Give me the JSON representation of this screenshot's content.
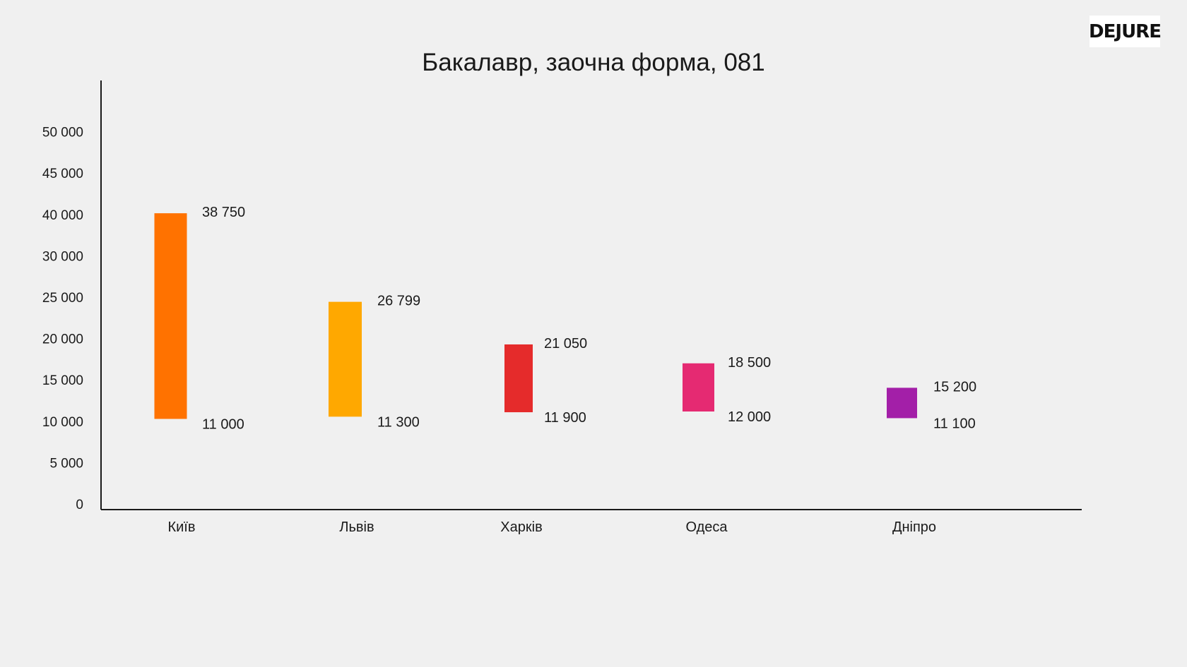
{
  "logo": {
    "text": "DEJURE"
  },
  "chart_data": {
    "type": "bar",
    "subtype": "floating-range",
    "title": "Бакалавр, заочна форма, 081",
    "xlabel": "",
    "ylabel": "",
    "ylim": [
      0,
      50000
    ],
    "y_ticks": [
      {
        "value": 0,
        "label": "0"
      },
      {
        "value": 5000,
        "label": "5 000"
      },
      {
        "value": 10000,
        "label": "10 000"
      },
      {
        "value": 15000,
        "label": "15 000"
      },
      {
        "value": 20000,
        "label": "20 000"
      },
      {
        "value": 25000,
        "label": "25 000"
      },
      {
        "value": 30000,
        "label": "30 000"
      },
      {
        "value": 40000,
        "label": "40 000"
      },
      {
        "value": 45000,
        "label": "45 000"
      },
      {
        "value": 50000,
        "label": "50 000"
      }
    ],
    "grid": false,
    "legend": "none",
    "categories": [
      "Київ",
      "Львів",
      "Харків",
      "Одеса",
      "Дніпро"
    ],
    "bars": [
      {
        "category": "Київ",
        "min": 11000,
        "max": 38750,
        "min_label": "11 000",
        "max_label": "38 750",
        "color": "#ff7200"
      },
      {
        "category": "Львів",
        "min": 11300,
        "max": 26799,
        "min_label": "11 300",
        "max_label": "26 799",
        "color": "#ffa800"
      },
      {
        "category": "Харків",
        "min": 11900,
        "max": 21050,
        "min_label": "11 900",
        "max_label": "21 050",
        "color": "#e52b2b"
      },
      {
        "category": "Одеса",
        "min": 12000,
        "max": 18500,
        "min_label": "12 000",
        "max_label": "18 500",
        "color": "#e52a72"
      },
      {
        "category": "Дніпро",
        "min": 11100,
        "max": 15200,
        "min_label": "11 100",
        "max_label": "15 200",
        "color": "#a31fa8"
      }
    ]
  }
}
